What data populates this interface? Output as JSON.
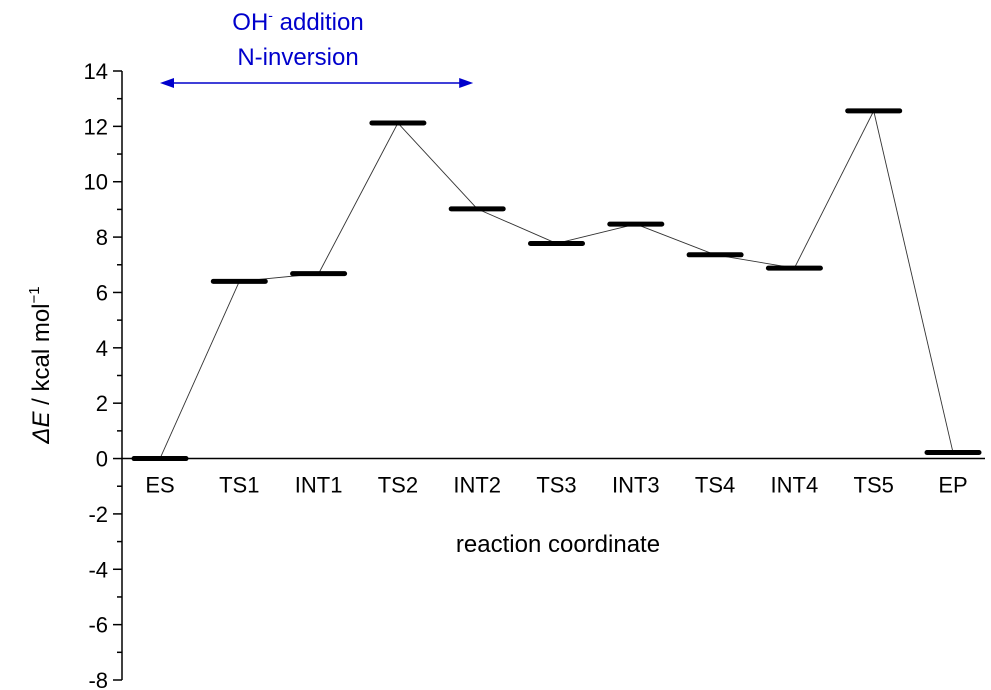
{
  "chart_data": {
    "type": "line",
    "xlabel": "reaction coordinate",
    "ylabel_symbol": "ΔE",
    "ylabel_text": " / kcal mol",
    "ylabel_exponent": "−1",
    "ylim": [
      -8,
      14
    ],
    "y_major_step": 2,
    "y_minor_step": 1,
    "grid": false,
    "categories": [
      "ES",
      "TS1",
      "INT1",
      "TS2",
      "INT2",
      "TS3",
      "INT3",
      "TS4",
      "INT4",
      "TS5",
      "EP"
    ],
    "series": [
      {
        "values": [
          0.0,
          6.4,
          6.68,
          12.12,
          9.02,
          7.77,
          8.47,
          7.36,
          6.88,
          12.56,
          0.22
        ]
      }
    ],
    "annotation": {
      "line1_main": "OH",
      "line1_super": "-",
      "line1_rest": " addition",
      "line2": "N-inversion",
      "span_from": "ES",
      "span_to": "INT2",
      "color": "#0000cc"
    },
    "colors": {
      "levels": "#000000",
      "connectors": "#333333",
      "annotation": "#0000cc"
    }
  }
}
